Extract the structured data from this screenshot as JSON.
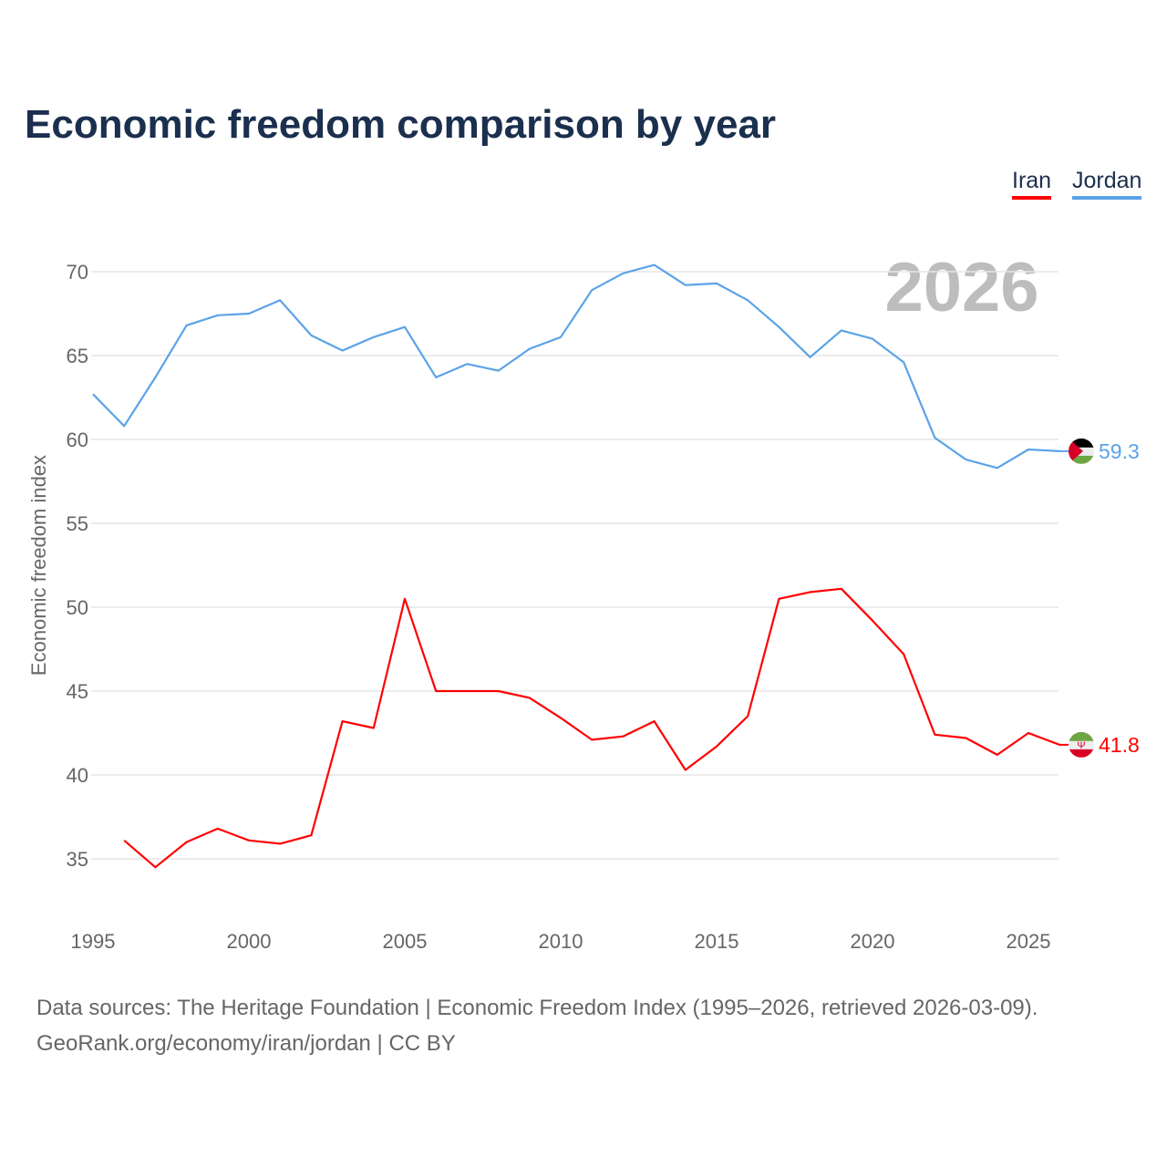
{
  "chart_data": {
    "type": "line",
    "title": "Economic freedom comparison by year",
    "ylabel": "Economic freedom index",
    "xlabel": "",
    "ylim": [
      32,
      72
    ],
    "xlim": [
      1995,
      2026
    ],
    "yticks": [
      35,
      40,
      45,
      50,
      55,
      60,
      65,
      70
    ],
    "xticks": [
      1995,
      2000,
      2005,
      2010,
      2015,
      2020,
      2025
    ],
    "watermark_year": "2026",
    "legend_position": "top-right",
    "x": [
      1995,
      1996,
      1997,
      1998,
      1999,
      2000,
      2001,
      2002,
      2003,
      2004,
      2005,
      2006,
      2007,
      2008,
      2009,
      2010,
      2011,
      2012,
      2013,
      2014,
      2015,
      2016,
      2017,
      2018,
      2019,
      2020,
      2021,
      2022,
      2023,
      2024,
      2025,
      2026
    ],
    "series": [
      {
        "name": "Iran",
        "color": "#ff0000",
        "end_label": "41.8",
        "flag": "iran-flag",
        "values": [
          null,
          36.1,
          34.5,
          36.0,
          36.8,
          36.1,
          35.9,
          36.4,
          43.2,
          42.8,
          50.5,
          45.0,
          45.0,
          45.0,
          44.6,
          43.4,
          42.1,
          42.3,
          43.2,
          40.3,
          41.7,
          43.5,
          50.5,
          50.9,
          51.1,
          49.2,
          47.2,
          42.4,
          42.2,
          41.2,
          42.5,
          41.8
        ]
      },
      {
        "name": "Jordan",
        "color": "#5ba3e8",
        "end_label": "59.3",
        "flag": "jordan-flag",
        "values": [
          62.7,
          60.8,
          63.7,
          66.8,
          67.4,
          67.5,
          68.3,
          66.2,
          65.3,
          66.1,
          66.7,
          63.7,
          64.5,
          64.1,
          65.4,
          66.1,
          68.9,
          69.9,
          70.4,
          69.2,
          69.3,
          68.3,
          66.7,
          64.9,
          66.5,
          66.0,
          64.6,
          60.1,
          58.8,
          58.3,
          59.4,
          59.3
        ]
      }
    ]
  },
  "footer": {
    "line1": "Data sources: The Heritage Foundation | Economic Freedom Index (1995–2026, retrieved 2026-03-09).",
    "line2": "GeoRank.org/economy/iran/jordan | CC BY"
  }
}
